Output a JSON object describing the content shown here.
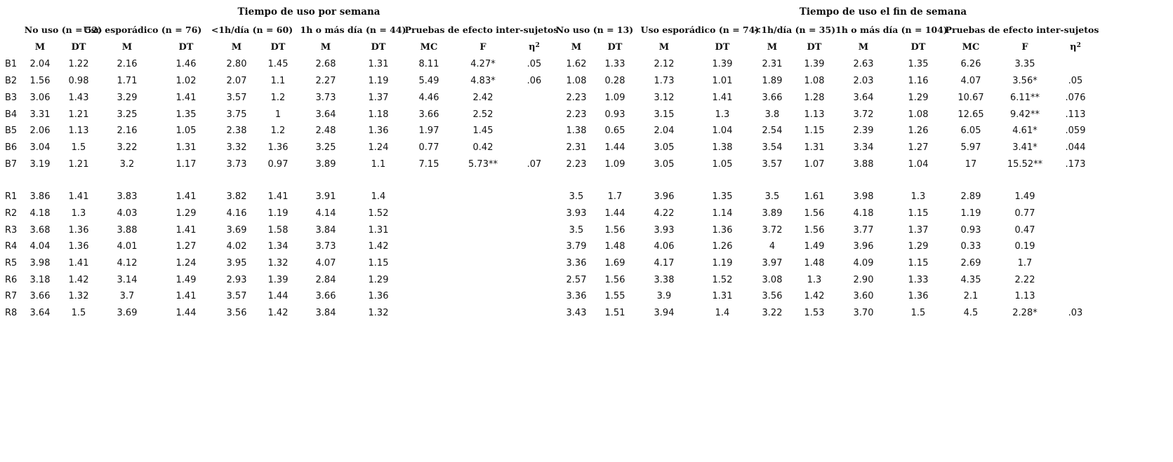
{
  "group_headers": [
    "Tiempo de uso por semana",
    "Tiempo de uso el fin de semana"
  ],
  "sub_headers_week": [
    "No uso (n = 52)",
    "Uso esporádico (n = 76)",
    "<1h/día (n = 60)",
    "1h o más día (n = 44)",
    "Pruebas de efecto inter-sujetos"
  ],
  "sub_headers_weekend": [
    "No uso (n = 13)",
    "Uso esporádico (n = 74)",
    "<1h/día (n = 35)",
    "1h o más día (n = 104)",
    "Pruebas de efecto inter-sujetos"
  ],
  "column_headers": [
    "M",
    "DT",
    "M",
    "DT",
    "M",
    "DT",
    "M",
    "DT",
    "MC",
    "F",
    "η",
    "M",
    "DT",
    "M",
    "DT",
    "M",
    "DT",
    "M",
    "DT",
    "MC",
    "F",
    "η"
  ],
  "eta_superscript": "2",
  "rows": [
    {
      "label": "B1",
      "cells": [
        "2.04",
        "1.22",
        "2.16",
        "1.46",
        "2.80",
        "1.45",
        "2.68",
        "1.31",
        "8.11",
        "4.27*",
        ".05",
        "1.62",
        "1.33",
        "2.12",
        "1.39",
        "2.31",
        "1.39",
        "2.63",
        "1.35",
        "6.26",
        "3.35",
        ""
      ]
    },
    {
      "label": "B2",
      "cells": [
        "1.56",
        "0.98",
        "1.71",
        "1.02",
        "2.07",
        "1.1",
        "2.27",
        "1.19",
        "5.49",
        "4.83*",
        ".06",
        "1.08",
        "0.28",
        "1.73",
        "1.01",
        "1.89",
        "1.08",
        "2.03",
        "1.16",
        "4.07",
        "3.56*",
        ".05"
      ]
    },
    {
      "label": "B3",
      "cells": [
        "3.06",
        "1.43",
        "3.29",
        "1.41",
        "3.57",
        "1.2",
        "3.73",
        "1.37",
        "4.46",
        "2.42",
        "",
        "2.23",
        "1.09",
        "3.12",
        "1.41",
        "3.66",
        "1.28",
        "3.64",
        "1.29",
        "10.67",
        "6.11**",
        ".076"
      ]
    },
    {
      "label": "B4",
      "cells": [
        "3.31",
        "1.21",
        "3.25",
        "1.35",
        "3.75",
        "1",
        "3.64",
        "1.18",
        "3.66",
        "2.52",
        "",
        "2.23",
        "0.93",
        "3.15",
        "1.3",
        "3.8",
        "1.13",
        "3.72",
        "1.08",
        "12.65",
        "9.42**",
        ".113"
      ]
    },
    {
      "label": "B5",
      "cells": [
        "2.06",
        "1.13",
        "2.16",
        "1.05",
        "2.38",
        "1.2",
        "2.48",
        "1.36",
        "1.97",
        "1.45",
        "",
        "1.38",
        "0.65",
        "2.04",
        "1.04",
        "2.54",
        "1.15",
        "2.39",
        "1.26",
        "6.05",
        "4.61*",
        ".059"
      ]
    },
    {
      "label": "B6",
      "cells": [
        "3.04",
        "1.5",
        "3.22",
        "1.31",
        "3.32",
        "1.36",
        "3.25",
        "1.24",
        "0.77",
        "0.42",
        "",
        "2.31",
        "1.44",
        "3.05",
        "1.38",
        "3.54",
        "1.31",
        "3.34",
        "1.27",
        "5.97",
        "3.41*",
        ".044"
      ]
    },
    {
      "label": "B7",
      "cells": [
        "3.19",
        "1.21",
        "3.2",
        "1.17",
        "3.73",
        "0.97",
        "3.89",
        "1.1",
        "7.15",
        "5.73**",
        ".07",
        "2.23",
        "1.09",
        "3.05",
        "1.05",
        "3.57",
        "1.07",
        "3.88",
        "1.04",
        "17",
        "15.52**",
        ".173"
      ]
    },
    {
      "label": "R1",
      "cells": [
        "3.86",
        "1.41",
        "3.83",
        "1.41",
        "3.82",
        "1.41",
        "3.91",
        "1.4",
        "",
        "",
        "",
        "3.5",
        "1.7",
        "3.96",
        "1.35",
        "3.5",
        "1.61",
        "3.98",
        "1.3",
        "2.89",
        "1.49",
        ""
      ]
    },
    {
      "label": "R2",
      "cells": [
        "4.18",
        "1.3",
        "4.03",
        "1.29",
        "4.16",
        "1.19",
        "4.14",
        "1.52",
        "",
        "",
        "",
        "3.93",
        "1.44",
        "4.22",
        "1.14",
        "3.89",
        "1.56",
        "4.18",
        "1.15",
        "1.19",
        "0.77",
        ""
      ]
    },
    {
      "label": "R3",
      "cells": [
        "3.68",
        "1.36",
        "3.88",
        "1.41",
        "3.69",
        "1.58",
        "3.84",
        "1.31",
        "",
        "",
        "",
        "3.5",
        "1.56",
        "3.93",
        "1.36",
        "3.72",
        "1.56",
        "3.77",
        "1.37",
        "0.93",
        "0.47",
        ""
      ]
    },
    {
      "label": "R4",
      "cells": [
        "4.04",
        "1.36",
        "4.01",
        "1.27",
        "4.02",
        "1.34",
        "3.73",
        "1.42",
        "",
        "",
        "",
        "3.79",
        "1.48",
        "4.06",
        "1.26",
        "4",
        "1.49",
        "3.96",
        "1.29",
        "0.33",
        "0.19",
        ""
      ]
    },
    {
      "label": "R5",
      "cells": [
        "3.98",
        "1.41",
        "4.12",
        "1.24",
        "3.95",
        "1.32",
        "4.07",
        "1.15",
        "",
        "",
        "",
        "3.36",
        "1.69",
        "4.17",
        "1.19",
        "3.97",
        "1.48",
        "4.09",
        "1.15",
        "2.69",
        "1.7",
        ""
      ]
    },
    {
      "label": "R6",
      "cells": [
        "3.18",
        "1.42",
        "3.14",
        "1.49",
        "2.93",
        "1.39",
        "2.84",
        "1.29",
        "",
        "",
        "",
        "2.57",
        "1.56",
        "3.38",
        "1.52",
        "3.08",
        "1.3",
        "2.90",
        "1.33",
        "4.35",
        "2.22",
        ""
      ]
    },
    {
      "label": "R7",
      "cells": [
        "3.66",
        "1.32",
        "3.7",
        "1.41",
        "3.57",
        "1.44",
        "3.66",
        "1.36",
        "",
        "",
        "",
        "3.36",
        "1.55",
        "3.9",
        "1.31",
        "3.56",
        "1.42",
        "3.60",
        "1.36",
        "2.1",
        "1.13",
        ""
      ]
    },
    {
      "label": "R8",
      "cells": [
        "3.64",
        "1.5",
        "3.69",
        "1.44",
        "3.56",
        "1.42",
        "3.84",
        "1.32",
        "",
        "",
        "",
        "3.43",
        "1.51",
        "3.94",
        "1.4",
        "3.22",
        "1.53",
        "3.70",
        "1.5",
        "4.5",
        "2.28*",
        ".03"
      ]
    }
  ]
}
